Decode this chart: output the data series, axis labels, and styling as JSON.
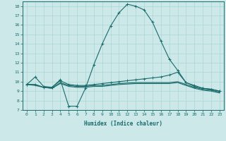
{
  "xlabel": "Humidex (Indice chaleur)",
  "bg_color": "#cce8e8",
  "grid_color": "#aad4d4",
  "line_color": "#1a6b6b",
  "xlim": [
    -0.5,
    23.5
  ],
  "ylim": [
    7,
    18.5
  ],
  "xticks": [
    0,
    1,
    2,
    3,
    4,
    5,
    6,
    7,
    8,
    9,
    10,
    11,
    12,
    13,
    14,
    15,
    16,
    17,
    18,
    19,
    20,
    21,
    22,
    23
  ],
  "yticks": [
    7,
    8,
    9,
    10,
    11,
    12,
    13,
    14,
    15,
    16,
    17,
    18
  ],
  "line1_x": [
    0,
    1,
    2,
    3,
    4,
    5,
    6,
    7,
    8,
    9,
    10,
    11,
    12,
    13,
    14,
    15,
    16,
    17,
    18,
    19,
    20,
    21,
    22,
    23
  ],
  "line1_y": [
    9.7,
    10.5,
    9.5,
    9.4,
    10.2,
    7.4,
    7.4,
    9.3,
    11.8,
    14.0,
    15.9,
    17.3,
    18.2,
    18.0,
    17.6,
    16.3,
    14.3,
    12.4,
    11.2,
    9.9,
    9.5,
    9.3,
    9.2,
    9.0
  ],
  "line2_x": [
    0,
    1,
    2,
    3,
    4,
    5,
    6,
    7,
    8,
    9,
    10,
    11,
    12,
    13,
    14,
    15,
    16,
    17,
    18,
    19,
    20,
    21,
    22,
    23
  ],
  "line2_y": [
    9.7,
    9.7,
    9.4,
    9.4,
    10.1,
    9.7,
    9.6,
    9.6,
    9.7,
    9.8,
    9.9,
    10.0,
    10.1,
    10.2,
    10.3,
    10.4,
    10.5,
    10.7,
    11.0,
    9.9,
    9.6,
    9.3,
    9.2,
    9.0
  ],
  "line3_x": [
    0,
    1,
    2,
    3,
    4,
    5,
    6,
    7,
    8,
    9,
    10,
    11,
    12,
    13,
    14,
    15,
    16,
    17,
    18,
    19,
    20,
    21,
    22,
    23
  ],
  "line3_y": [
    9.7,
    9.7,
    9.4,
    9.3,
    9.9,
    9.6,
    9.5,
    9.5,
    9.6,
    9.6,
    9.7,
    9.8,
    9.85,
    9.9,
    9.9,
    9.9,
    9.9,
    9.9,
    10.0,
    9.7,
    9.4,
    9.2,
    9.1,
    8.9
  ],
  "line4_x": [
    0,
    1,
    2,
    3,
    4,
    5,
    6,
    7,
    8,
    9,
    10,
    11,
    12,
    13,
    14,
    15,
    16,
    17,
    18,
    19,
    20,
    21,
    22,
    23
  ],
  "line4_y": [
    9.7,
    9.6,
    9.4,
    9.3,
    9.8,
    9.5,
    9.4,
    9.4,
    9.5,
    9.5,
    9.6,
    9.7,
    9.75,
    9.8,
    9.8,
    9.8,
    9.8,
    9.8,
    9.9,
    9.6,
    9.3,
    9.1,
    9.0,
    8.8
  ]
}
